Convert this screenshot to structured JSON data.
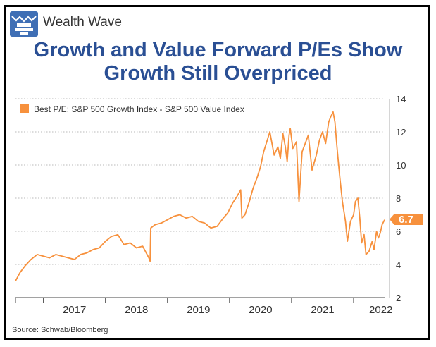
{
  "header": {
    "brand": "Wealth Wave",
    "logo_icon": "wealth-wave-logo-icon",
    "title_line1": "Growth and Value Forward P/Es Show",
    "title_line2": "Growth Still Overpriced"
  },
  "source": "Source: Schwab/Bloomberg",
  "colors": {
    "accent": "#f7913d",
    "title": "#2a4f94",
    "grid": "#b8b8b8",
    "logo_bg": "#3f6fb5"
  },
  "chart_data": {
    "type": "line",
    "legend": "Best P/E: S&P 500 Growth Index - S&P 500 Value Index",
    "legend_position": "top-left",
    "x_ticks": [
      "2017",
      "2018",
      "2019",
      "2020",
      "2021",
      "2022"
    ],
    "xlim": [
      2016.55,
      2022.5
    ],
    "ylim": [
      2,
      14
    ],
    "y_ticks": [
      2,
      4,
      6,
      8,
      10,
      12,
      14
    ],
    "y_axis_side": "right",
    "grid": "horizontal dotted",
    "last_value_label": "6.7",
    "series": [
      {
        "x": [
          2016.55,
          2016.62,
          2016.7,
          2016.8,
          2016.9,
          2017.0,
          2017.1,
          2017.2,
          2017.3,
          2017.4,
          2017.5,
          2017.6,
          2017.7,
          2017.8,
          2017.9,
          2018.0,
          2018.1,
          2018.2,
          2018.3,
          2018.4,
          2018.5,
          2018.6,
          2018.7,
          2018.72,
          2018.73,
          2018.8,
          2018.9,
          2019.0,
          2019.1,
          2019.2,
          2019.3,
          2019.4,
          2019.5,
          2019.6,
          2019.7,
          2019.8,
          2019.9,
          2019.97,
          2020.05,
          2020.12,
          2020.18,
          2020.2,
          2020.25,
          2020.32,
          2020.38,
          2020.45,
          2020.5,
          2020.55,
          2020.6,
          2020.65,
          2020.72,
          2020.78,
          2020.82,
          2020.86,
          2020.9,
          2020.93,
          2020.96,
          2020.98,
          2021.02,
          2021.08,
          2021.12,
          2021.17,
          2021.22,
          2021.27,
          2021.33,
          2021.4,
          2021.45,
          2021.5,
          2021.55,
          2021.6,
          2021.63,
          2021.67,
          2021.7,
          2021.73,
          2021.75,
          2021.78,
          2021.82,
          2021.87,
          2021.9,
          2021.95,
          2022.0,
          2022.03,
          2022.07,
          2022.1,
          2022.13,
          2022.17,
          2022.2,
          2022.25,
          2022.3,
          2022.33,
          2022.37,
          2022.4,
          2022.43,
          2022.46,
          2022.5
        ],
        "y": [
          3.0,
          3.5,
          3.9,
          4.3,
          4.6,
          4.5,
          4.4,
          4.6,
          4.5,
          4.4,
          4.3,
          4.6,
          4.7,
          4.9,
          5.0,
          5.4,
          5.7,
          5.8,
          5.2,
          5.3,
          5.0,
          5.1,
          4.4,
          4.2,
          6.2,
          6.4,
          6.5,
          6.7,
          6.9,
          7.0,
          6.8,
          6.9,
          6.6,
          6.5,
          6.2,
          6.3,
          6.8,
          7.1,
          7.7,
          8.1,
          8.5,
          6.8,
          7.0,
          7.8,
          8.6,
          9.3,
          9.9,
          10.8,
          11.4,
          12.0,
          10.6,
          11.1,
          10.4,
          11.9,
          11.1,
          10.2,
          11.8,
          12.2,
          11.0,
          11.4,
          7.8,
          10.8,
          11.3,
          11.8,
          9.7,
          10.6,
          11.5,
          12.0,
          11.3,
          12.6,
          12.9,
          13.2,
          12.6,
          11.2,
          10.4,
          9.2,
          7.8,
          6.6,
          5.4,
          6.6,
          7.0,
          7.8,
          8.0,
          6.8,
          5.3,
          5.8,
          4.6,
          4.8,
          5.4,
          4.9,
          6.0,
          5.6,
          5.9,
          6.4,
          6.7
        ]
      }
    ]
  }
}
